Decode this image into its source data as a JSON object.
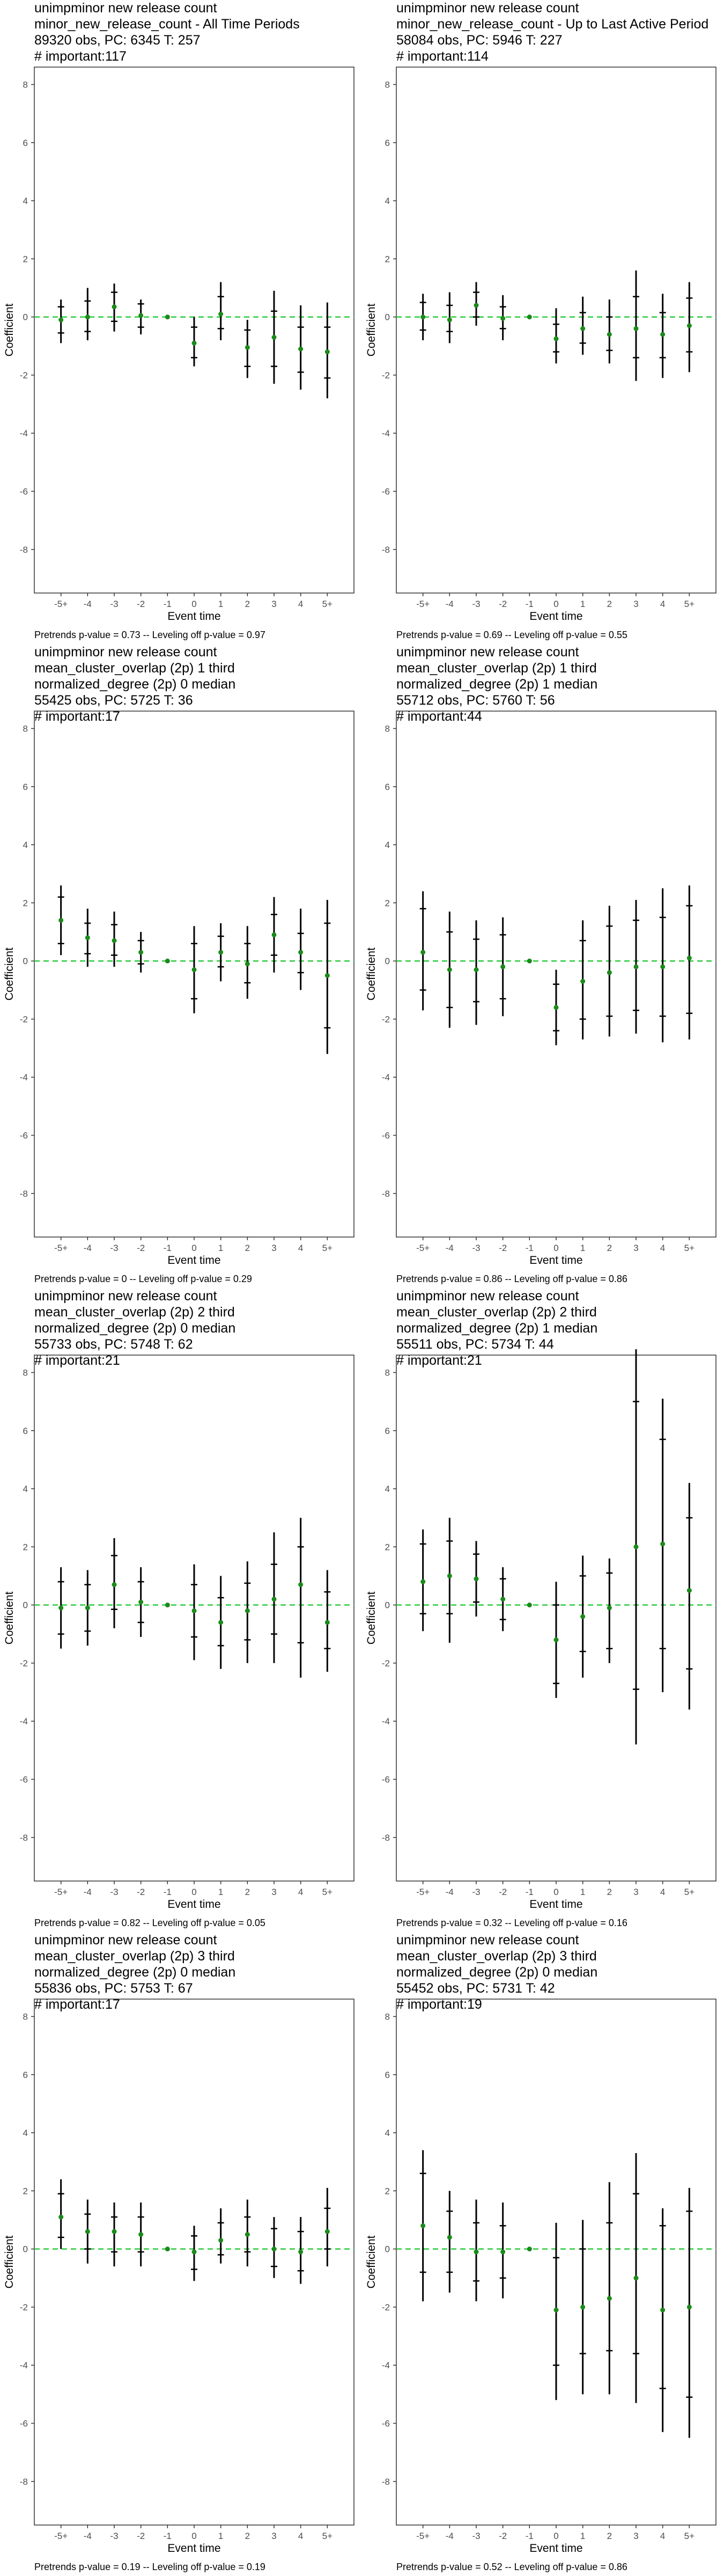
{
  "axis": {
    "xlabel": "Event time",
    "ylabel": "Coefficient"
  },
  "chart_data": [
    {
      "type": "scatter",
      "title_lines": [
        " unimpminor new release count",
        "minor_new_release_count - All Time Periods",
        "89320 obs, PC: 6345 T: 257",
        "# important:117"
      ],
      "xlabel": "Event time",
      "ylabel": "Coefficient",
      "categories": [
        "-5+",
        "-4",
        "-3",
        "-2",
        "-1",
        "0",
        "1",
        "2",
        "3",
        "4",
        "5+"
      ],
      "ylim": [
        -9.5,
        8.6
      ],
      "yticks": [
        -8,
        -6,
        -4,
        -2,
        0,
        2,
        4,
        6,
        8
      ],
      "estimate": [
        -0.1,
        0.0,
        0.35,
        0.05,
        0.0,
        -0.9,
        0.1,
        -1.05,
        -0.7,
        -1.1,
        -1.2
      ],
      "ci_outer": [
        [
          -0.9,
          0.6
        ],
        [
          -0.8,
          1.0
        ],
        [
          -0.5,
          1.15
        ],
        [
          -0.6,
          0.6
        ],
        [
          0.0,
          0.0
        ],
        [
          -1.7,
          0.0
        ],
        [
          -0.8,
          1.2
        ],
        [
          -2.1,
          -0.1
        ],
        [
          -2.3,
          0.9
        ],
        [
          -2.5,
          0.4
        ],
        [
          -2.8,
          0.5
        ]
      ],
      "ci_inner": [
        [
          -0.55,
          0.35
        ],
        [
          -0.5,
          0.55
        ],
        [
          -0.15,
          0.85
        ],
        [
          -0.35,
          0.45
        ],
        [
          0.0,
          0.0
        ],
        [
          -1.4,
          -0.35
        ],
        [
          -0.4,
          0.7
        ],
        [
          -1.7,
          -0.45
        ],
        [
          -1.7,
          0.2
        ],
        [
          -1.9,
          -0.35
        ],
        [
          -2.1,
          -0.35
        ]
      ],
      "caption": "Pretrends p-value = 0.73 -- Leveling off p-value = 0.97"
    },
    {
      "type": "scatter",
      "title_lines": [
        " unimpminor new release count",
        "minor_new_release_count - Up to Last Active Period",
        "58084 obs, PC: 5946 T: 227",
        "# important:114"
      ],
      "xlabel": "Event time",
      "ylabel": "Coefficient",
      "categories": [
        "-5+",
        "-4",
        "-3",
        "-2",
        "-1",
        "0",
        "1",
        "2",
        "3",
        "4",
        "5+"
      ],
      "ylim": [
        -9.5,
        8.6
      ],
      "yticks": [
        -8,
        -6,
        -4,
        -2,
        0,
        2,
        4,
        6,
        8
      ],
      "estimate": [
        0.0,
        -0.1,
        0.4,
        -0.05,
        0.0,
        -0.75,
        -0.4,
        -0.6,
        -0.4,
        -0.6,
        -0.3
      ],
      "ci_outer": [
        [
          -0.8,
          0.8
        ],
        [
          -0.9,
          0.85
        ],
        [
          -0.3,
          1.2
        ],
        [
          -0.8,
          0.75
        ],
        [
          0.0,
          0.0
        ],
        [
          -1.6,
          0.3
        ],
        [
          -1.3,
          0.7
        ],
        [
          -1.6,
          0.6
        ],
        [
          -2.2,
          1.6
        ],
        [
          -2.1,
          0.8
        ],
        [
          -1.9,
          1.2
        ]
      ],
      "ci_inner": [
        [
          -0.45,
          0.5
        ],
        [
          -0.5,
          0.4
        ],
        [
          0.0,
          0.85
        ],
        [
          -0.4,
          0.35
        ],
        [
          0.0,
          0.0
        ],
        [
          -1.2,
          -0.25
        ],
        [
          -0.9,
          0.15
        ],
        [
          -1.15,
          0.0
        ],
        [
          -1.4,
          0.7
        ],
        [
          -1.4,
          0.15
        ],
        [
          -1.2,
          0.65
        ]
      ],
      "caption": "Pretrends p-value = 0.69 -- Leveling off p-value = 0.55"
    },
    {
      "type": "scatter",
      "title_lines": [
        " unimpminor new release count",
        "mean_cluster_overlap (2p) 1 third",
        "normalized_degree (2p) 0 median",
        "55425 obs, PC: 5725 T: 36",
        "# important:17"
      ],
      "xlabel": "Event time",
      "ylabel": "Coefficient",
      "categories": [
        "-5+",
        "-4",
        "-3",
        "-2",
        "-1",
        "0",
        "1",
        "2",
        "3",
        "4",
        "5+"
      ],
      "ylim": [
        -9.5,
        8.6
      ],
      "yticks": [
        -8,
        -6,
        -4,
        -2,
        0,
        2,
        4,
        6,
        8
      ],
      "estimate": [
        1.4,
        0.8,
        0.7,
        0.3,
        0.0,
        -0.3,
        0.3,
        -0.1,
        0.9,
        0.3,
        -0.5
      ],
      "ci_outer": [
        [
          0.2,
          2.6
        ],
        [
          -0.2,
          1.8
        ],
        [
          -0.2,
          1.7
        ],
        [
          -0.4,
          1.0
        ],
        [
          0.0,
          0.0
        ],
        [
          -1.8,
          1.2
        ],
        [
          -0.7,
          1.3
        ],
        [
          -1.3,
          1.2
        ],
        [
          -0.4,
          2.2
        ],
        [
          -1.0,
          1.8
        ],
        [
          -3.2,
          2.1
        ]
      ],
      "ci_inner": [
        [
          0.6,
          2.2
        ],
        [
          0.25,
          1.3
        ],
        [
          0.2,
          1.25
        ],
        [
          -0.1,
          0.7
        ],
        [
          0.0,
          0.0
        ],
        [
          -1.3,
          0.6
        ],
        [
          -0.2,
          0.85
        ],
        [
          -0.75,
          0.6
        ],
        [
          0.2,
          1.6
        ],
        [
          -0.4,
          0.95
        ],
        [
          -2.3,
          1.3
        ]
      ],
      "caption": "Pretrends p-value = 0 -- Leveling off p-value = 0.29"
    },
    {
      "type": "scatter",
      "title_lines": [
        " unimpminor new release count",
        "mean_cluster_overlap (2p) 1 third",
        "normalized_degree (2p) 1 median",
        "55712 obs, PC: 5760 T: 56",
        "# important:44"
      ],
      "xlabel": "Event time",
      "ylabel": "Coefficient",
      "categories": [
        "-5+",
        "-4",
        "-3",
        "-2",
        "-1",
        "0",
        "1",
        "2",
        "3",
        "4",
        "5+"
      ],
      "ylim": [
        -9.5,
        8.6
      ],
      "yticks": [
        -8,
        -6,
        -4,
        -2,
        0,
        2,
        4,
        6,
        8
      ],
      "estimate": [
        0.3,
        -0.3,
        -0.3,
        -0.2,
        0.0,
        -1.6,
        -0.7,
        -0.4,
        -0.2,
        -0.2,
        0.1
      ],
      "ci_outer": [
        [
          -1.7,
          2.4
        ],
        [
          -2.3,
          1.7
        ],
        [
          -2.2,
          1.4
        ],
        [
          -1.9,
          1.5
        ],
        [
          0.0,
          0.0
        ],
        [
          -2.9,
          -0.3
        ],
        [
          -2.7,
          1.4
        ],
        [
          -2.6,
          1.9
        ],
        [
          -2.5,
          2.1
        ],
        [
          -2.8,
          2.5
        ],
        [
          -2.7,
          2.6
        ]
      ],
      "ci_inner": [
        [
          -1.0,
          1.8
        ],
        [
          -1.6,
          1.0
        ],
        [
          -1.4,
          0.75
        ],
        [
          -1.3,
          0.9
        ],
        [
          0.0,
          0.0
        ],
        [
          -2.4,
          -0.8
        ],
        [
          -2.0,
          0.7
        ],
        [
          -1.9,
          1.2
        ],
        [
          -1.7,
          1.4
        ],
        [
          -1.9,
          1.5
        ],
        [
          -1.8,
          1.9
        ]
      ],
      "caption": "Pretrends p-value = 0.86 -- Leveling off p-value = 0.86"
    },
    {
      "type": "scatter",
      "title_lines": [
        " unimpminor new release count",
        "mean_cluster_overlap (2p) 2 third",
        "normalized_degree (2p) 0 median",
        "55733 obs, PC: 5748 T: 62",
        "# important:21"
      ],
      "xlabel": "Event time",
      "ylabel": "Coefficient",
      "categories": [
        "-5+",
        "-4",
        "-3",
        "-2",
        "-1",
        "0",
        "1",
        "2",
        "3",
        "4",
        "5+"
      ],
      "ylim": [
        -9.5,
        8.6
      ],
      "yticks": [
        -8,
        -6,
        -4,
        -2,
        0,
        2,
        4,
        6,
        8
      ],
      "estimate": [
        -0.1,
        -0.1,
        0.7,
        0.1,
        0.0,
        -0.2,
        -0.6,
        -0.2,
        0.2,
        0.7,
        -0.6
      ],
      "ci_outer": [
        [
          -1.5,
          1.3
        ],
        [
          -1.4,
          1.2
        ],
        [
          -0.8,
          2.3
        ],
        [
          -1.1,
          1.3
        ],
        [
          0.0,
          0.0
        ],
        [
          -1.9,
          1.4
        ],
        [
          -2.2,
          1.0
        ],
        [
          -2.0,
          1.5
        ],
        [
          -2.0,
          2.5
        ],
        [
          -2.5,
          3.0
        ],
        [
          -2.3,
          1.2
        ]
      ],
      "ci_inner": [
        [
          -1.0,
          0.8
        ],
        [
          -0.9,
          0.7
        ],
        [
          -0.15,
          1.7
        ],
        [
          -0.6,
          0.8
        ],
        [
          0.0,
          0.0
        ],
        [
          -1.1,
          0.7
        ],
        [
          -1.4,
          0.25
        ],
        [
          -1.2,
          0.75
        ],
        [
          -1.0,
          1.4
        ],
        [
          -1.3,
          2.0
        ],
        [
          -1.5,
          0.45
        ]
      ],
      "caption": "Pretrends p-value = 0.82 -- Leveling off p-value = 0.05"
    },
    {
      "type": "scatter",
      "title_lines": [
        " unimpminor new release count",
        "mean_cluster_overlap (2p) 2 third",
        "normalized_degree (2p) 1 median",
        "55511 obs, PC: 5734 T: 44",
        "# important:21"
      ],
      "xlabel": "Event time",
      "ylabel": "Coefficient",
      "categories": [
        "-5+",
        "-4",
        "-3",
        "-2",
        "-1",
        "0",
        "1",
        "2",
        "3",
        "4",
        "5+"
      ],
      "ylim": [
        -9.5,
        8.6
      ],
      "yticks": [
        -8,
        -6,
        -4,
        -2,
        0,
        2,
        4,
        6,
        8
      ],
      "estimate": [
        0.8,
        1.0,
        0.9,
        0.2,
        0.0,
        -1.2,
        -0.4,
        -0.1,
        2.0,
        2.1,
        0.5
      ],
      "ci_outer": [
        [
          -0.9,
          2.6
        ],
        [
          -1.3,
          3.0
        ],
        [
          -0.4,
          2.2
        ],
        [
          -0.9,
          1.3
        ],
        [
          0.0,
          0.0
        ],
        [
          -3.2,
          0.8
        ],
        [
          -2.5,
          1.7
        ],
        [
          -2.0,
          1.6
        ],
        [
          -4.8,
          8.8
        ],
        [
          -3.0,
          7.1
        ],
        [
          -3.6,
          4.2
        ]
      ],
      "ci_inner": [
        [
          -0.3,
          2.1
        ],
        [
          -0.3,
          2.2
        ],
        [
          0.1,
          1.75
        ],
        [
          -0.5,
          0.9
        ],
        [
          0.0,
          0.0
        ],
        [
          -2.7,
          0.0
        ],
        [
          -1.6,
          1.0
        ],
        [
          -1.5,
          1.1
        ],
        [
          -2.9,
          7.0
        ],
        [
          -1.5,
          5.7
        ],
        [
          -2.2,
          3.0
        ]
      ],
      "caption": "Pretrends p-value = 0.32 -- Leveling off p-value = 0.16"
    },
    {
      "type": "scatter",
      "title_lines": [
        " unimpminor new release count",
        "mean_cluster_overlap (2p) 3 third",
        "normalized_degree (2p) 0 median",
        "55836 obs, PC: 5753 T: 67",
        "# important:17"
      ],
      "xlabel": "Event time",
      "ylabel": "Coefficient",
      "categories": [
        "-5+",
        "-4",
        "-3",
        "-2",
        "-1",
        "0",
        "1",
        "2",
        "3",
        "4",
        "5+"
      ],
      "ylim": [
        -9.5,
        8.6
      ],
      "yticks": [
        -8,
        -6,
        -4,
        -2,
        0,
        2,
        4,
        6,
        8
      ],
      "estimate": [
        1.1,
        0.6,
        0.6,
        0.5,
        0.0,
        -0.1,
        0.3,
        0.5,
        0.0,
        -0.1,
        0.6
      ],
      "ci_outer": [
        [
          0.0,
          2.4
        ],
        [
          -0.5,
          1.7
        ],
        [
          -0.6,
          1.6
        ],
        [
          -0.6,
          1.6
        ],
        [
          0.0,
          0.0
        ],
        [
          -1.1,
          0.8
        ],
        [
          -0.5,
          1.4
        ],
        [
          -0.6,
          1.7
        ],
        [
          -1.0,
          1.1
        ],
        [
          -1.2,
          1.1
        ],
        [
          -0.6,
          2.1
        ]
      ],
      "ci_inner": [
        [
          0.4,
          1.9
        ],
        [
          0.0,
          1.2
        ],
        [
          -0.1,
          1.1
        ],
        [
          -0.1,
          1.1
        ],
        [
          0.0,
          0.0
        ],
        [
          -0.7,
          0.45
        ],
        [
          -0.2,
          0.9
        ],
        [
          -0.1,
          1.1
        ],
        [
          -0.6,
          0.7
        ],
        [
          -0.75,
          0.6
        ],
        [
          0.0,
          1.4
        ]
      ],
      "caption": "Pretrends p-value = 0.19 -- Leveling off p-value = 0.19"
    },
    {
      "type": "scatter",
      "title_lines": [
        " unimpminor new release count",
        "mean_cluster_overlap (2p) 3 third",
        "normalized_degree (2p) 0 median",
        "55452 obs, PC: 5731 T: 42",
        "# important:19"
      ],
      "xlabel": "Event time",
      "ylabel": "Coefficient",
      "categories": [
        "-5+",
        "-4",
        "-3",
        "-2",
        "-1",
        "0",
        "1",
        "2",
        "3",
        "4",
        "5+"
      ],
      "ylim": [
        -9.5,
        8.6
      ],
      "yticks": [
        -8,
        -6,
        -4,
        -2,
        0,
        2,
        4,
        6,
        8
      ],
      "estimate": [
        0.8,
        0.4,
        -0.1,
        -0.1,
        0.0,
        -2.1,
        -2.0,
        -1.7,
        -1.0,
        -2.1,
        -2.0
      ],
      "ci_outer": [
        [
          -1.8,
          3.4
        ],
        [
          -1.5,
          2.0
        ],
        [
          -1.8,
          1.7
        ],
        [
          -1.7,
          1.6
        ],
        [
          0.0,
          0.0
        ],
        [
          -5.2,
          0.9
        ],
        [
          -5.0,
          1.0
        ],
        [
          -5.0,
          2.3
        ],
        [
          -5.3,
          3.3
        ],
        [
          -6.3,
          1.4
        ],
        [
          -6.5,
          2.1
        ]
      ],
      "ci_inner": [
        [
          -0.8,
          2.6
        ],
        [
          -0.8,
          1.3
        ],
        [
          -1.1,
          0.9
        ],
        [
          -1.0,
          0.8
        ],
        [
          0.0,
          0.0
        ],
        [
          -4.0,
          -0.3
        ],
        [
          -3.6,
          0.0
        ],
        [
          -3.5,
          0.9
        ],
        [
          -3.6,
          1.9
        ],
        [
          -4.8,
          0.8
        ],
        [
          -5.1,
          1.3
        ]
      ],
      "caption": "Pretrends p-value = 0.52 -- Leveling off p-value = 0.86"
    }
  ]
}
